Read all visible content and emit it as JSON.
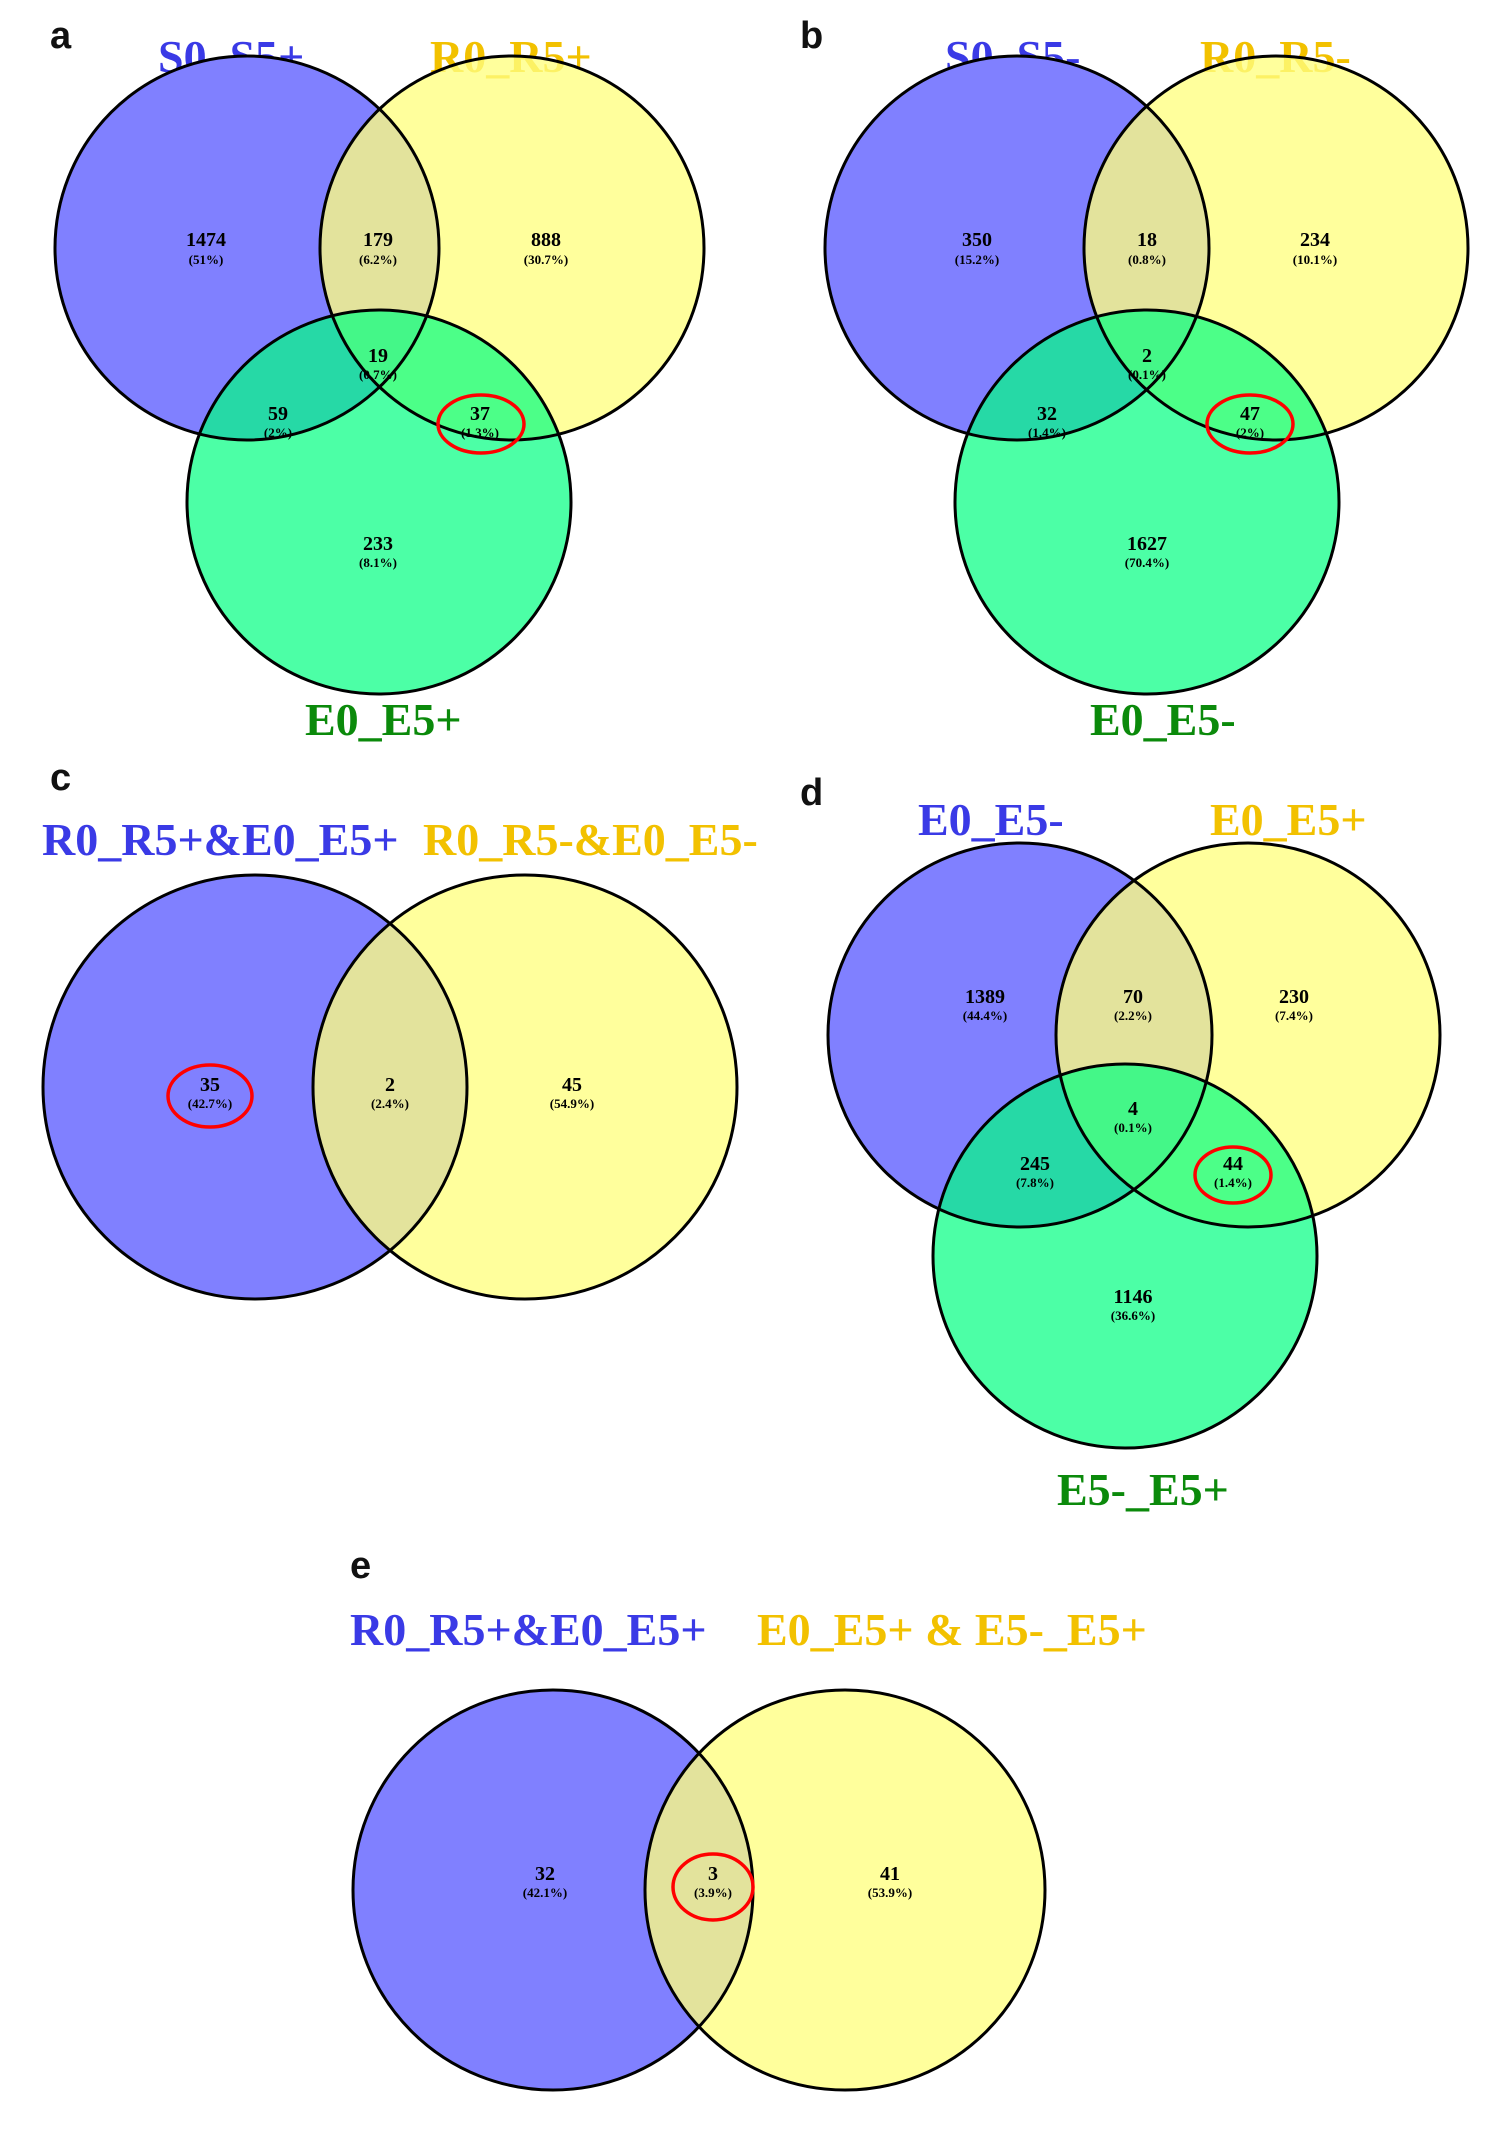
{
  "colors": {
    "blue_label": "#3a3ae6",
    "yellow_label": "#f2c100",
    "green_label": "#0b8a0b",
    "blue_fill": "#8080ff",
    "yellow_fill": "#ffff80",
    "green_fill": "#00ff80",
    "highlight": "#ff0000"
  },
  "panels": {
    "a": {
      "letter": "a",
      "labels": {
        "A": "S0_S5+",
        "B": "R0_R5+",
        "C": "E0_E5+"
      },
      "regions": {
        "A_only": {
          "count": "1474",
          "pct": "(51%)"
        },
        "AB": {
          "count": "179",
          "pct": "(6.2%)"
        },
        "B_only": {
          "count": "888",
          "pct": "(30.7%)"
        },
        "ABC": {
          "count": "19",
          "pct": "(0.7%)"
        },
        "AC": {
          "count": "59",
          "pct": "(2%)"
        },
        "BC": {
          "count": "37",
          "pct": "(1.3%)"
        },
        "C_only": {
          "count": "233",
          "pct": "(8.1%)"
        }
      }
    },
    "b": {
      "letter": "b",
      "labels": {
        "A": "S0_S5-",
        "B": "R0_R5-",
        "C": "E0_E5-"
      },
      "regions": {
        "A_only": {
          "count": "350",
          "pct": "(15.2%)"
        },
        "AB": {
          "count": "18",
          "pct": "(0.8%)"
        },
        "B_only": {
          "count": "234",
          "pct": "(10.1%)"
        },
        "ABC": {
          "count": "2",
          "pct": "(0.1%)"
        },
        "AC": {
          "count": "32",
          "pct": "(1.4%)"
        },
        "BC": {
          "count": "47",
          "pct": "(2%)"
        },
        "C_only": {
          "count": "1627",
          "pct": "(70.4%)"
        }
      }
    },
    "c": {
      "letter": "c",
      "labels": {
        "A": "R0_R5+&E0_E5+",
        "B": "R0_R5-&E0_E5-"
      },
      "regions": {
        "A_only": {
          "count": "35",
          "pct": "(42.7%)"
        },
        "AB": {
          "count": "2",
          "pct": "(2.4%)"
        },
        "B_only": {
          "count": "45",
          "pct": "(54.9%)"
        }
      }
    },
    "d": {
      "letter": "d",
      "labels": {
        "A": "E0_E5-",
        "B": "E0_E5+",
        "C": "E5-_E5+"
      },
      "regions": {
        "A_only": {
          "count": "1389",
          "pct": "(44.4%)"
        },
        "AB": {
          "count": "70",
          "pct": "(2.2%)"
        },
        "B_only": {
          "count": "230",
          "pct": "(7.4%)"
        },
        "ABC": {
          "count": "4",
          "pct": "(0.1%)"
        },
        "AC": {
          "count": "245",
          "pct": "(7.8%)"
        },
        "BC": {
          "count": "44",
          "pct": "(1.4%)"
        },
        "C_only": {
          "count": "1146",
          "pct": "(36.6%)"
        }
      }
    },
    "e": {
      "letter": "e",
      "labels": {
        "A": "R0_R5+&E0_E5+",
        "B": "E0_E5+ & E5-_E5+"
      },
      "regions": {
        "A_only": {
          "count": "32",
          "pct": "(42.1%)"
        },
        "AB": {
          "count": "3",
          "pct": "(3.9%)"
        },
        "B_only": {
          "count": "41",
          "pct": "(53.9%)"
        }
      }
    }
  }
}
